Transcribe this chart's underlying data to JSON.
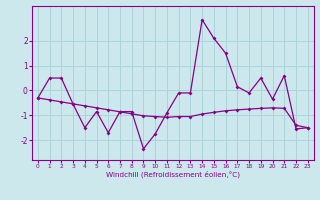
{
  "xlabel": "Windchill (Refroidissement éolien,°C)",
  "bg_color": "#cce8ec",
  "line_color": "#880088",
  "grid_color": "#aad4d8",
  "xlim": [
    -0.5,
    23.5
  ],
  "ylim": [
    -2.8,
    3.4
  ],
  "yticks": [
    -2,
    -1,
    0,
    1,
    2
  ],
  "xticks": [
    0,
    1,
    2,
    3,
    4,
    5,
    6,
    7,
    8,
    9,
    10,
    11,
    12,
    13,
    14,
    15,
    16,
    17,
    18,
    19,
    20,
    21,
    22,
    23
  ],
  "line1_x": [
    0,
    1,
    2,
    3,
    4,
    5,
    6,
    7,
    8,
    9,
    10,
    11,
    12,
    13,
    14,
    15,
    16,
    17,
    18,
    19,
    20,
    21,
    22,
    23
  ],
  "line1_y": [
    -0.3,
    0.5,
    0.5,
    -0.55,
    -1.5,
    -0.85,
    -1.7,
    -0.85,
    -0.85,
    -2.35,
    -1.75,
    -0.9,
    -0.1,
    -0.1,
    2.85,
    2.1,
    1.5,
    0.15,
    -0.1,
    0.5,
    -0.35,
    0.6,
    -1.55,
    -1.5
  ],
  "line2_x": [
    0,
    1,
    2,
    3,
    4,
    5,
    6,
    7,
    8,
    9,
    10,
    11,
    12,
    13,
    14,
    15,
    16,
    17,
    18,
    19,
    20,
    21,
    22,
    23
  ],
  "line2_y": [
    -0.3,
    -0.38,
    -0.46,
    -0.54,
    -0.62,
    -0.7,
    -0.78,
    -0.86,
    -0.94,
    -1.02,
    -1.05,
    -1.08,
    -1.05,
    -1.05,
    -0.95,
    -0.88,
    -0.82,
    -0.78,
    -0.75,
    -0.72,
    -0.7,
    -0.72,
    -1.4,
    -1.5
  ]
}
